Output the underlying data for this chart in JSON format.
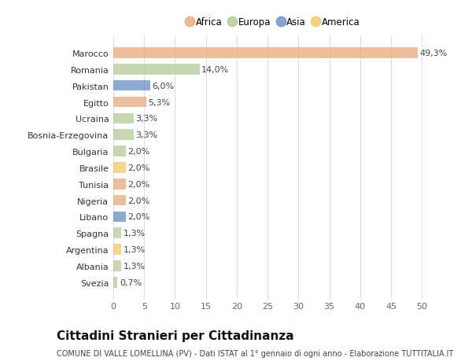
{
  "countries": [
    "Marocco",
    "Romania",
    "Pakistan",
    "Egitto",
    "Ucraina",
    "Bosnia-Erzegovina",
    "Bulgaria",
    "Brasile",
    "Tunisia",
    "Nigeria",
    "Libano",
    "Spagna",
    "Argentina",
    "Albania",
    "Svezia"
  ],
  "values": [
    49.3,
    14.0,
    6.0,
    5.3,
    3.3,
    3.3,
    2.0,
    2.0,
    2.0,
    2.0,
    2.0,
    1.3,
    1.3,
    1.3,
    0.7
  ],
  "labels": [
    "49,3%",
    "14,0%",
    "6,0%",
    "5,3%",
    "3,3%",
    "3,3%",
    "2,0%",
    "2,0%",
    "2,0%",
    "2,0%",
    "2,0%",
    "1,3%",
    "1,3%",
    "1,3%",
    "0,7%"
  ],
  "continents": [
    "Africa",
    "Europa",
    "Asia",
    "Africa",
    "Europa",
    "Europa",
    "Europa",
    "America",
    "Africa",
    "Africa",
    "Asia",
    "Europa",
    "America",
    "Europa",
    "Europa"
  ],
  "continent_colors": {
    "Africa": "#E8A87C",
    "Europa": "#B5C99A",
    "Asia": "#6B8DC4",
    "America": "#F0C96A"
  },
  "legend_order": [
    "Africa",
    "Europa",
    "Asia",
    "America"
  ],
  "title": "Cittadini Stranieri per Cittadinanza",
  "subtitle": "COMUNE DI VALLE LOMELLINA (PV) - Dati ISTAT al 1° gennaio di ogni anno - Elaborazione TUTTITALIA.IT",
  "xlim": [
    0,
    52
  ],
  "xticks": [
    0,
    5,
    10,
    15,
    20,
    25,
    30,
    35,
    40,
    45,
    50
  ],
  "background_color": "#ffffff",
  "bar_height": 0.65,
  "label_fontsize": 8,
  "tick_fontsize": 8,
  "ytick_fontsize": 8,
  "title_fontsize": 11,
  "subtitle_fontsize": 7
}
